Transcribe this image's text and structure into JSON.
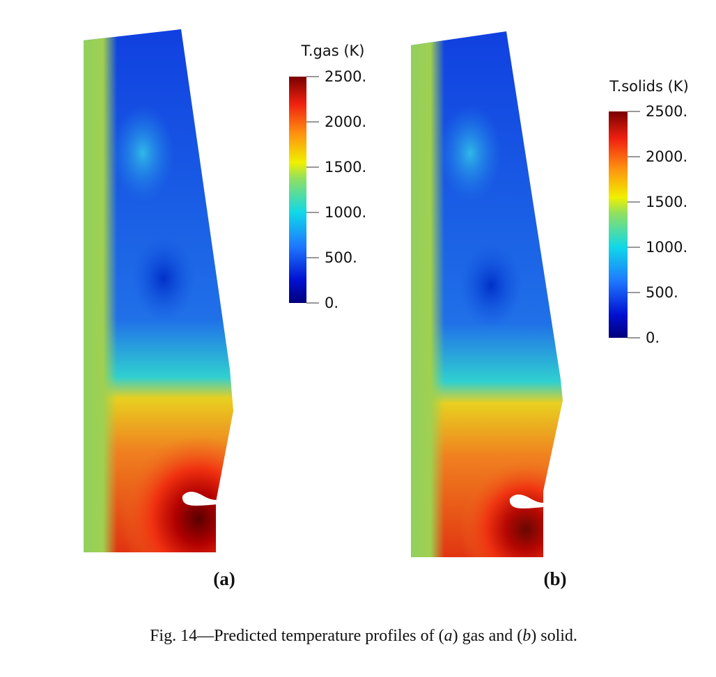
{
  "panels": [
    {
      "label": "(a)",
      "colorbar": {
        "title": "T.gas (K)",
        "range": [
          0,
          2500
        ],
        "ticks": [
          {
            "value": 0,
            "label": "0."
          },
          {
            "value": 500,
            "label": "500."
          },
          {
            "value": 1000,
            "label": "1000."
          },
          {
            "value": 1500,
            "label": "1500."
          },
          {
            "value": 2000,
            "label": "2000."
          },
          {
            "value": 2500,
            "label": "2500."
          }
        ]
      }
    },
    {
      "label": "(b)",
      "colorbar": {
        "title": "T.solids (K)",
        "range": [
          0,
          2500
        ],
        "ticks": [
          {
            "value": 0,
            "label": "0."
          },
          {
            "value": 500,
            "label": "500."
          },
          {
            "value": 1000,
            "label": "1000."
          },
          {
            "value": 1500,
            "label": "1500."
          },
          {
            "value": 2000,
            "label": "2000."
          },
          {
            "value": 2500,
            "label": "2500."
          }
        ]
      }
    }
  ],
  "caption": [
    "Fig. 14—Predicted temperature profiles of (",
    "a",
    ") gas and (",
    "b",
    ") solid."
  ]
}
